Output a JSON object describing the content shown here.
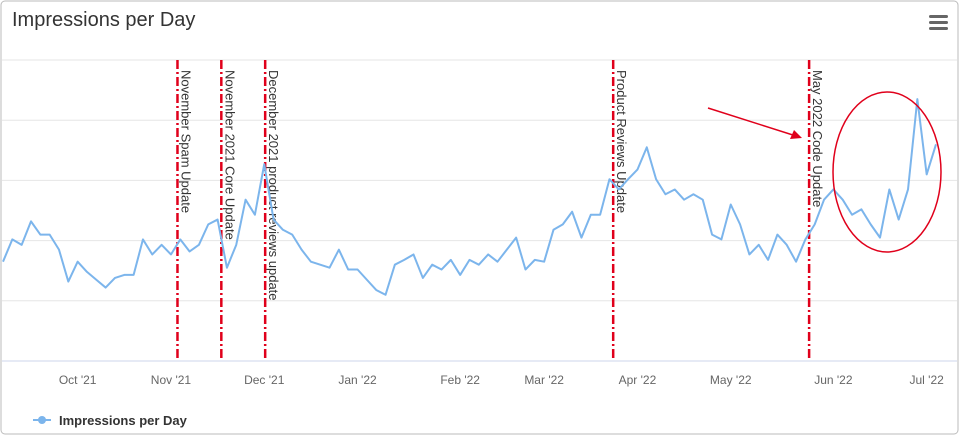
{
  "chart_data": {
    "type": "line",
    "title": "Impressions per Day",
    "categories": [
      null,
      null,
      null,
      null,
      null,
      null,
      null,
      null,
      "Oct '21",
      null,
      null,
      null,
      null,
      null,
      null,
      null,
      null,
      null,
      "Nov '21",
      null,
      null,
      null,
      null,
      null,
      null,
      null,
      null,
      null,
      "Dec '21",
      null,
      null,
      null,
      null,
      null,
      null,
      null,
      null,
      null,
      "Jan '22",
      null,
      null,
      null,
      null,
      null,
      null,
      null,
      null,
      null,
      null,
      "Feb '22",
      null,
      null,
      null,
      null,
      null,
      null,
      null,
      null,
      "Mar '22",
      null,
      null,
      null,
      null,
      null,
      null,
      null,
      null,
      null,
      "Apr '22",
      null,
      null,
      null,
      null,
      null,
      null,
      null,
      null,
      null,
      "May '22",
      null,
      null,
      null,
      null,
      null,
      null,
      null,
      null,
      null,
      null,
      "Jun '22",
      null,
      null,
      null,
      null,
      null,
      null,
      null,
      null,
      null,
      "Jul '22",
      null
    ],
    "series": [
      {
        "name": "Impressions per Day",
        "color": "#7cb5ec",
        "values": [
          1.65,
          2.02,
          1.93,
          2.32,
          2.1,
          2.1,
          1.85,
          1.32,
          1.65,
          1.48,
          1.35,
          1.22,
          1.38,
          1.43,
          1.43,
          2.02,
          1.77,
          1.93,
          1.77,
          2.02,
          1.82,
          1.93,
          2.27,
          2.35,
          1.55,
          1.93,
          2.68,
          2.43,
          3.27,
          2.35,
          2.18,
          2.1,
          1.85,
          1.65,
          1.6,
          1.55,
          1.85,
          1.52,
          1.52,
          1.35,
          1.18,
          1.1,
          1.6,
          1.68,
          1.77,
          1.38,
          1.6,
          1.52,
          1.68,
          1.43,
          1.68,
          1.6,
          1.77,
          1.65,
          1.85,
          2.05,
          1.52,
          1.68,
          1.65,
          2.18,
          2.27,
          2.48,
          2.05,
          2.43,
          2.43,
          3.02,
          2.85,
          3.02,
          3.18,
          3.55,
          3.02,
          2.77,
          2.85,
          2.68,
          2.77,
          2.68,
          2.1,
          2.02,
          2.6,
          2.27,
          1.77,
          1.93,
          1.68,
          2.1,
          1.93,
          1.65,
          2.02,
          2.27,
          2.68,
          2.85,
          2.68,
          2.43,
          2.52,
          2.27,
          2.05,
          2.85,
          2.35,
          2.85,
          4.35,
          3.1,
          3.6
        ]
      }
    ],
    "ylim": [
      0,
      5.3
    ],
    "yticks": [
      0,
      1,
      2,
      3,
      4,
      5
    ],
    "grid": true,
    "annotations": [
      {
        "index": 18.7,
        "text": "November Spam Update",
        "color": "#e0001b"
      },
      {
        "index": 23.4,
        "text": "November 2021 Core Update",
        "color": "#e0001b"
      },
      {
        "index": 28.1,
        "text": "December 2021 product reviews update",
        "color": "#e0001b"
      },
      {
        "index": 65.4,
        "text": "Product Reviews Update",
        "color": "#e0001b"
      },
      {
        "index": 86.4,
        "text": "May 2022 Code Update",
        "color": "#e0001b"
      }
    ],
    "legend": "bottom-left"
  }
}
